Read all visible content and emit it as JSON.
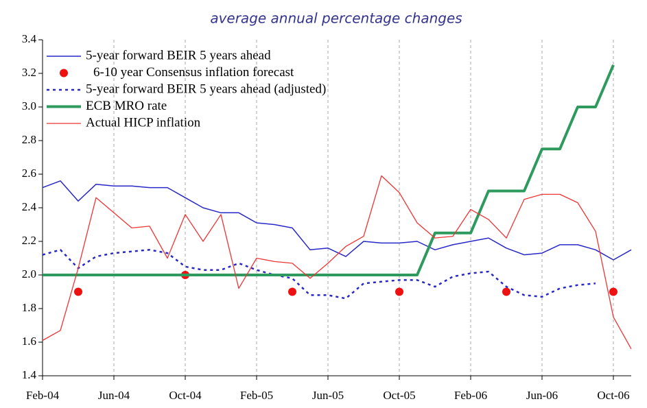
{
  "chart_data": {
    "type": "line",
    "title": "average annual percentage changes",
    "categories": [
      "Feb-04",
      null,
      null,
      null,
      "Jun-04",
      null,
      null,
      null,
      "Oct-04",
      null,
      null,
      null,
      "Feb-05",
      null,
      null,
      null,
      "Jun-05",
      null,
      null,
      null,
      "Oct-05",
      null,
      null,
      null,
      "Feb-06",
      null,
      null,
      null,
      "Jun-06",
      null,
      null,
      null,
      "Oct-06",
      null
    ],
    "ylim": [
      1.4,
      3.4
    ],
    "yticks": [
      1.4,
      1.6,
      1.8,
      {
        "value": 2,
        "label": "2.0"
      },
      2.2,
      2.4,
      2.6,
      2.8,
      {
        "value": 3,
        "label": "3.0"
      },
      3.2,
      3.4
    ],
    "grid": "x",
    "legend": "top-left",
    "series": [
      {
        "name": "5-year forward BEIR 5 years ahead",
        "color": "#2727c8",
        "style": "solid",
        "width": 1.5,
        "values": [
          2.52,
          2.56,
          2.44,
          2.54,
          2.53,
          2.53,
          2.52,
          2.52,
          2.46,
          2.4,
          2.37,
          2.37,
          2.31,
          2.3,
          2.28,
          2.15,
          2.16,
          2.11,
          2.2,
          2.19,
          2.19,
          2.2,
          2.15,
          2.18,
          2.2,
          2.22,
          2.16,
          2.12,
          2.13,
          2.18,
          2.18,
          2.15,
          2.09,
          2.15
        ]
      },
      {
        "name": "6-10 year Consensus inflation forecast",
        "color": "#ee1111",
        "style": "dots",
        "width": 6,
        "values": [
          null,
          null,
          1.9,
          null,
          null,
          null,
          null,
          null,
          2.0,
          null,
          null,
          null,
          null,
          null,
          1.9,
          null,
          null,
          null,
          null,
          null,
          1.9,
          null,
          null,
          null,
          null,
          null,
          1.9,
          null,
          null,
          null,
          null,
          null,
          1.9,
          null
        ]
      },
      {
        "name": "5-year forward BEIR 5 years ahead (adjusted)",
        "color": "#2727c8",
        "style": "dashed",
        "width": 2.5,
        "values": [
          2.12,
          2.15,
          2.04,
          2.11,
          2.13,
          2.14,
          2.15,
          2.13,
          2.05,
          2.03,
          2.03,
          2.07,
          2.03,
          2.0,
          1.98,
          1.88,
          1.88,
          1.86,
          1.95,
          1.96,
          1.97,
          1.97,
          1.93,
          1.99,
          2.01,
          2.02,
          1.93,
          1.88,
          1.87,
          1.92,
          1.94,
          1.95,
          null,
          null
        ]
      },
      {
        "name": "ECB MRO rate",
        "color": "#2e9a5e",
        "style": "solid",
        "width": 4,
        "values": [
          2.0,
          2.0,
          2.0,
          2.0,
          2.0,
          2.0,
          2.0,
          2.0,
          2.0,
          2.0,
          2.0,
          2.0,
          2.0,
          2.0,
          2.0,
          2.0,
          2.0,
          2.0,
          2.0,
          2.0,
          2.0,
          2.0,
          2.25,
          2.25,
          2.25,
          2.5,
          2.5,
          2.5,
          2.75,
          2.75,
          3.0,
          3.0,
          3.25,
          null
        ]
      },
      {
        "name": "Actual HICP inflation",
        "color": "#ee3333",
        "style": "solid",
        "width": 1.3,
        "values": [
          1.61,
          1.67,
          2.04,
          2.46,
          2.37,
          2.28,
          2.29,
          2.1,
          2.36,
          2.2,
          2.36,
          1.92,
          2.1,
          2.08,
          2.07,
          1.98,
          2.07,
          2.17,
          2.23,
          2.59,
          2.49,
          2.31,
          2.22,
          2.23,
          2.39,
          2.33,
          2.22,
          2.45,
          2.48,
          2.48,
          2.43,
          2.26,
          1.75,
          1.56
        ]
      }
    ]
  }
}
